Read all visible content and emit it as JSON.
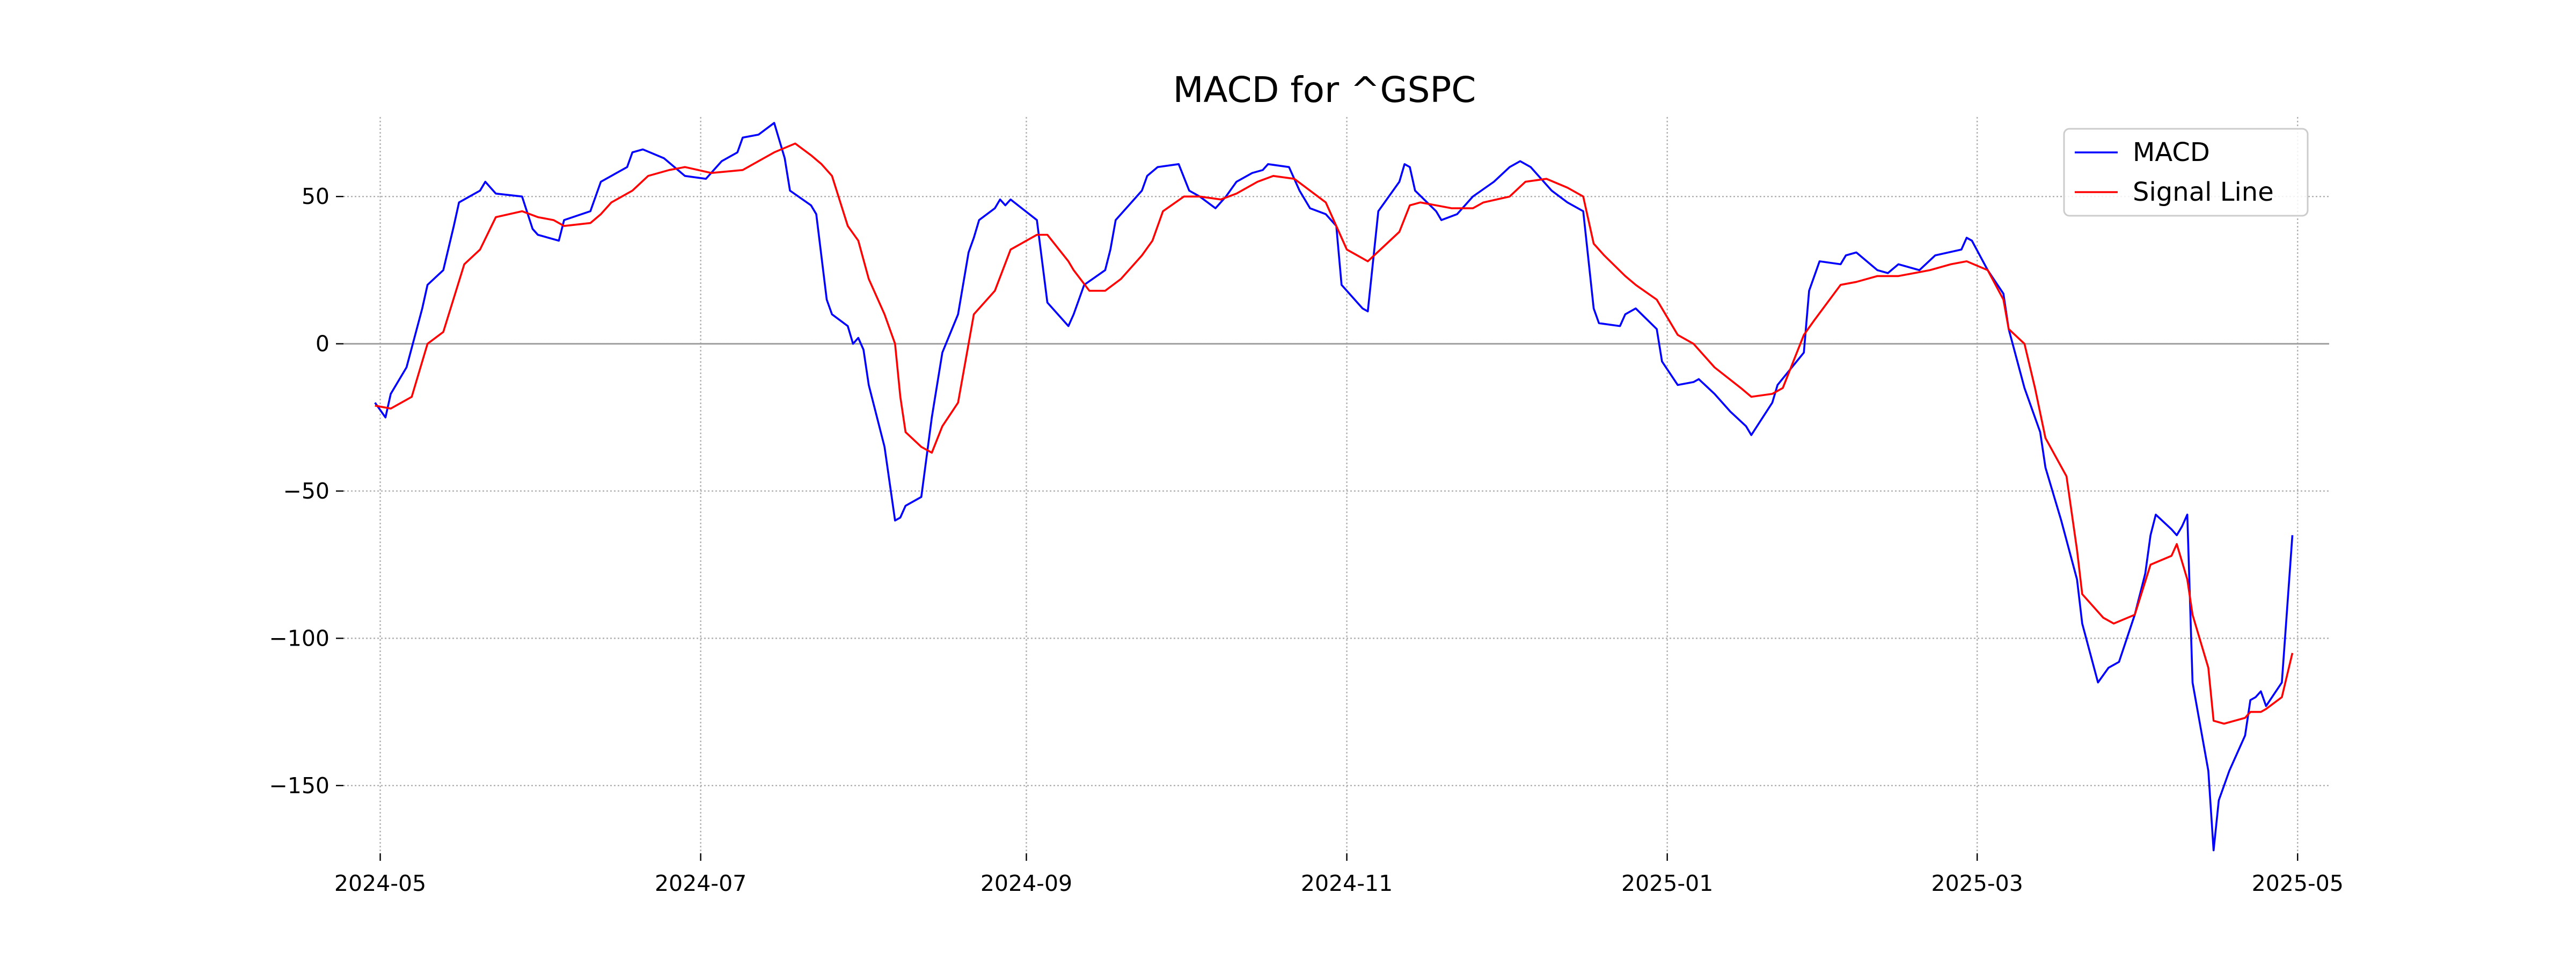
{
  "chart_data": {
    "type": "line",
    "title": "MACD for ^GSPC",
    "xlabel": "",
    "ylabel": "",
    "x_ticks": [
      "2024-05",
      "2024-07",
      "2024-09",
      "2024-11",
      "2025-01",
      "2025-03",
      "2025-05"
    ],
    "y_ticks": [
      50,
      0,
      -50,
      -100,
      -150
    ],
    "xlim": [
      "2024-04-24",
      "2025-05-07"
    ],
    "ylim": [
      -173,
      77
    ],
    "grid": true,
    "zero_line": true,
    "legend_position": "top-right",
    "series": [
      {
        "name": "MACD",
        "color": "#0000ff",
        "points": [
          [
            "2024-04-30",
            -20
          ],
          [
            "2024-05-02",
            -25
          ],
          [
            "2024-05-03",
            -17
          ],
          [
            "2024-05-06",
            -8
          ],
          [
            "2024-05-09",
            12
          ],
          [
            "2024-05-10",
            20
          ],
          [
            "2024-05-13",
            25
          ],
          [
            "2024-05-15",
            40
          ],
          [
            "2024-05-16",
            48
          ],
          [
            "2024-05-20",
            52
          ],
          [
            "2024-05-21",
            55
          ],
          [
            "2024-05-23",
            51
          ],
          [
            "2024-05-28",
            50
          ],
          [
            "2024-05-30",
            39
          ],
          [
            "2024-05-31",
            37
          ],
          [
            "2024-06-04",
            35
          ],
          [
            "2024-06-05",
            42
          ],
          [
            "2024-06-10",
            45
          ],
          [
            "2024-06-12",
            55
          ],
          [
            "2024-06-17",
            60
          ],
          [
            "2024-06-18",
            65
          ],
          [
            "2024-06-20",
            66
          ],
          [
            "2024-06-24",
            63
          ],
          [
            "2024-06-28",
            57
          ],
          [
            "2024-07-02",
            56
          ],
          [
            "2024-07-05",
            62
          ],
          [
            "2024-07-08",
            65
          ],
          [
            "2024-07-09",
            70
          ],
          [
            "2024-07-12",
            71
          ],
          [
            "2024-07-15",
            75
          ],
          [
            "2024-07-17",
            63
          ],
          [
            "2024-07-18",
            52
          ],
          [
            "2024-07-22",
            47
          ],
          [
            "2024-07-23",
            44
          ],
          [
            "2024-07-25",
            15
          ],
          [
            "2024-07-26",
            10
          ],
          [
            "2024-07-29",
            6
          ],
          [
            "2024-07-30",
            0
          ],
          [
            "2024-07-31",
            2
          ],
          [
            "2024-08-01",
            -2
          ],
          [
            "2024-08-02",
            -14
          ],
          [
            "2024-08-05",
            -35
          ],
          [
            "2024-08-07",
            -60
          ],
          [
            "2024-08-08",
            -59
          ],
          [
            "2024-08-09",
            -55
          ],
          [
            "2024-08-12",
            -52
          ],
          [
            "2024-08-14",
            -25
          ],
          [
            "2024-08-16",
            -3
          ],
          [
            "2024-08-19",
            10
          ],
          [
            "2024-08-21",
            31
          ],
          [
            "2024-08-22",
            36
          ],
          [
            "2024-08-23",
            42
          ],
          [
            "2024-08-26",
            46
          ],
          [
            "2024-08-27",
            49
          ],
          [
            "2024-08-28",
            47
          ],
          [
            "2024-08-29",
            49
          ],
          [
            "2024-09-03",
            42
          ],
          [
            "2024-09-05",
            14
          ],
          [
            "2024-09-09",
            6
          ],
          [
            "2024-09-10",
            10
          ],
          [
            "2024-09-12",
            20
          ],
          [
            "2024-09-16",
            25
          ],
          [
            "2024-09-17",
            32
          ],
          [
            "2024-09-18",
            42
          ],
          [
            "2024-09-20",
            46
          ],
          [
            "2024-09-23",
            52
          ],
          [
            "2024-09-24",
            57
          ],
          [
            "2024-09-26",
            60
          ],
          [
            "2024-09-30",
            61
          ],
          [
            "2024-10-02",
            52
          ],
          [
            "2024-10-04",
            50
          ],
          [
            "2024-10-07",
            46
          ],
          [
            "2024-10-09",
            50
          ],
          [
            "2024-10-11",
            55
          ],
          [
            "2024-10-14",
            58
          ],
          [
            "2024-10-16",
            59
          ],
          [
            "2024-10-17",
            61
          ],
          [
            "2024-10-21",
            60
          ],
          [
            "2024-10-23",
            52
          ],
          [
            "2024-10-25",
            46
          ],
          [
            "2024-10-28",
            44
          ],
          [
            "2024-10-30",
            40
          ],
          [
            "2024-10-31",
            20
          ],
          [
            "2024-11-04",
            12
          ],
          [
            "2024-11-05",
            11
          ],
          [
            "2024-11-07",
            45
          ],
          [
            "2024-11-11",
            55
          ],
          [
            "2024-11-12",
            61
          ],
          [
            "2024-11-13",
            60
          ],
          [
            "2024-11-14",
            52
          ],
          [
            "2024-11-18",
            45
          ],
          [
            "2024-11-19",
            42
          ],
          [
            "2024-11-22",
            44
          ],
          [
            "2024-11-25",
            50
          ],
          [
            "2024-11-29",
            55
          ],
          [
            "2024-12-02",
            60
          ],
          [
            "2024-12-04",
            62
          ],
          [
            "2024-12-06",
            60
          ],
          [
            "2024-12-10",
            52
          ],
          [
            "2024-12-13",
            48
          ],
          [
            "2024-12-16",
            45
          ],
          [
            "2024-12-18",
            12
          ],
          [
            "2024-12-19",
            7
          ],
          [
            "2024-12-23",
            6
          ],
          [
            "2024-12-24",
            10
          ],
          [
            "2024-12-26",
            12
          ],
          [
            "2024-12-30",
            5
          ],
          [
            "2024-12-31",
            -6
          ],
          [
            "2025-01-03",
            -14
          ],
          [
            "2025-01-06",
            -13
          ],
          [
            "2025-01-07",
            -12
          ],
          [
            "2025-01-10",
            -17
          ],
          [
            "2025-01-13",
            -23
          ],
          [
            "2025-01-16",
            -28
          ],
          [
            "2025-01-17",
            -31
          ],
          [
            "2025-01-21",
            -20
          ],
          [
            "2025-01-22",
            -14
          ],
          [
            "2025-01-27",
            -3
          ],
          [
            "2025-01-28",
            18
          ],
          [
            "2025-01-30",
            28
          ],
          [
            "2025-02-03",
            27
          ],
          [
            "2025-02-04",
            30
          ],
          [
            "2025-02-06",
            31
          ],
          [
            "2025-02-10",
            25
          ],
          [
            "2025-02-12",
            24
          ],
          [
            "2025-02-14",
            27
          ],
          [
            "2025-02-18",
            25
          ],
          [
            "2025-02-21",
            30
          ],
          [
            "2025-02-26",
            32
          ],
          [
            "2025-02-27",
            36
          ],
          [
            "2025-02-28",
            35
          ],
          [
            "2025-03-03",
            25
          ],
          [
            "2025-03-06",
            17
          ],
          [
            "2025-03-07",
            5
          ],
          [
            "2025-03-10",
            -15
          ],
          [
            "2025-03-13",
            -30
          ],
          [
            "2025-03-14",
            -42
          ],
          [
            "2025-03-17",
            -60
          ],
          [
            "2025-03-20",
            -80
          ],
          [
            "2025-03-21",
            -95
          ],
          [
            "2025-03-24",
            -115
          ],
          [
            "2025-03-26",
            -110
          ],
          [
            "2025-03-28",
            -108
          ],
          [
            "2025-03-31",
            -92
          ],
          [
            "2025-04-02",
            -78
          ],
          [
            "2025-04-03",
            -65
          ],
          [
            "2025-04-04",
            -58
          ],
          [
            "2025-04-07",
            -63
          ],
          [
            "2025-04-08",
            -65
          ],
          [
            "2025-04-09",
            -62
          ],
          [
            "2025-04-10",
            -58
          ],
          [
            "2025-04-11",
            -115
          ],
          [
            "2025-04-14",
            -145
          ],
          [
            "2025-04-15",
            -172
          ],
          [
            "2025-04-16",
            -155
          ],
          [
            "2025-04-17",
            -150
          ],
          [
            "2025-04-18",
            -145
          ],
          [
            "2025-04-21",
            -133
          ],
          [
            "2025-04-22",
            -121
          ],
          [
            "2025-04-23",
            -120
          ],
          [
            "2025-04-24",
            -118
          ],
          [
            "2025-04-25",
            -123
          ],
          [
            "2025-04-28",
            -115
          ],
          [
            "2025-04-30",
            -65
          ]
        ]
      },
      {
        "name": "Signal Line",
        "color": "#ff0000",
        "points": [
          [
            "2024-04-30",
            -21
          ],
          [
            "2024-05-03",
            -22
          ],
          [
            "2024-05-07",
            -18
          ],
          [
            "2024-05-10",
            0
          ],
          [
            "2024-05-13",
            4
          ],
          [
            "2024-05-17",
            27
          ],
          [
            "2024-05-20",
            32
          ],
          [
            "2024-05-23",
            43
          ],
          [
            "2024-05-28",
            45
          ],
          [
            "2024-05-31",
            43
          ],
          [
            "2024-06-03",
            42
          ],
          [
            "2024-06-05",
            40
          ],
          [
            "2024-06-10",
            41
          ],
          [
            "2024-06-12",
            44
          ],
          [
            "2024-06-14",
            48
          ],
          [
            "2024-06-18",
            52
          ],
          [
            "2024-06-21",
            57
          ],
          [
            "2024-06-25",
            59
          ],
          [
            "2024-06-28",
            60
          ],
          [
            "2024-07-03",
            58
          ],
          [
            "2024-07-09",
            59
          ],
          [
            "2024-07-11",
            61
          ],
          [
            "2024-07-15",
            65
          ],
          [
            "2024-07-19",
            68
          ],
          [
            "2024-07-22",
            64
          ],
          [
            "2024-07-24",
            61
          ],
          [
            "2024-07-26",
            57
          ],
          [
            "2024-07-29",
            40
          ],
          [
            "2024-07-31",
            35
          ],
          [
            "2024-08-02",
            22
          ],
          [
            "2024-08-05",
            10
          ],
          [
            "2024-08-07",
            0
          ],
          [
            "2024-08-08",
            -18
          ],
          [
            "2024-08-09",
            -30
          ],
          [
            "2024-08-12",
            -35
          ],
          [
            "2024-08-14",
            -37
          ],
          [
            "2024-08-16",
            -28
          ],
          [
            "2024-08-19",
            -20
          ],
          [
            "2024-08-22",
            10
          ],
          [
            "2024-08-26",
            18
          ],
          [
            "2024-08-29",
            32
          ],
          [
            "2024-09-03",
            37
          ],
          [
            "2024-09-05",
            37
          ],
          [
            "2024-09-09",
            28
          ],
          [
            "2024-09-10",
            25
          ],
          [
            "2024-09-13",
            18
          ],
          [
            "2024-09-16",
            18
          ],
          [
            "2024-09-19",
            22
          ],
          [
            "2024-09-23",
            30
          ],
          [
            "2024-09-25",
            35
          ],
          [
            "2024-09-27",
            45
          ],
          [
            "2024-10-01",
            50
          ],
          [
            "2024-10-04",
            50
          ],
          [
            "2024-10-08",
            49
          ],
          [
            "2024-10-11",
            51
          ],
          [
            "2024-10-15",
            55
          ],
          [
            "2024-10-18",
            57
          ],
          [
            "2024-10-22",
            56
          ],
          [
            "2024-10-25",
            52
          ],
          [
            "2024-10-28",
            48
          ],
          [
            "2024-10-30",
            40
          ],
          [
            "2024-11-01",
            32
          ],
          [
            "2024-11-05",
            28
          ],
          [
            "2024-11-08",
            33
          ],
          [
            "2024-11-11",
            38
          ],
          [
            "2024-11-13",
            47
          ],
          [
            "2024-11-15",
            48
          ],
          [
            "2024-11-18",
            47
          ],
          [
            "2024-11-21",
            46
          ],
          [
            "2024-11-25",
            46
          ],
          [
            "2024-11-27",
            48
          ],
          [
            "2024-12-02",
            50
          ],
          [
            "2024-12-05",
            55
          ],
          [
            "2024-12-09",
            56
          ],
          [
            "2024-12-13",
            53
          ],
          [
            "2024-12-16",
            50
          ],
          [
            "2024-12-18",
            34
          ],
          [
            "2024-12-20",
            30
          ],
          [
            "2024-12-24",
            23
          ],
          [
            "2024-12-26",
            20
          ],
          [
            "2024-12-30",
            15
          ],
          [
            "2025-01-03",
            3
          ],
          [
            "2025-01-06",
            0
          ],
          [
            "2025-01-10",
            -8
          ],
          [
            "2025-01-15",
            -15
          ],
          [
            "2025-01-17",
            -18
          ],
          [
            "2025-01-21",
            -17
          ],
          [
            "2025-01-23",
            -15
          ],
          [
            "2025-01-27",
            3
          ],
          [
            "2025-01-29",
            8
          ],
          [
            "2025-02-03",
            20
          ],
          [
            "2025-02-06",
            21
          ],
          [
            "2025-02-10",
            23
          ],
          [
            "2025-02-14",
            23
          ],
          [
            "2025-02-20",
            25
          ],
          [
            "2025-02-24",
            27
          ],
          [
            "2025-02-27",
            28
          ],
          [
            "2025-03-03",
            25
          ],
          [
            "2025-03-06",
            15
          ],
          [
            "2025-03-07",
            5
          ],
          [
            "2025-03-10",
            0
          ],
          [
            "2025-03-12",
            -15
          ],
          [
            "2025-03-14",
            -32
          ],
          [
            "2025-03-18",
            -45
          ],
          [
            "2025-03-20",
            -70
          ],
          [
            "2025-03-21",
            -85
          ],
          [
            "2025-03-25",
            -93
          ],
          [
            "2025-03-27",
            -95
          ],
          [
            "2025-03-31",
            -92
          ],
          [
            "2025-04-03",
            -75
          ],
          [
            "2025-04-07",
            -72
          ],
          [
            "2025-04-08",
            -68
          ],
          [
            "2025-04-10",
            -80
          ],
          [
            "2025-04-11",
            -92
          ],
          [
            "2025-04-14",
            -110
          ],
          [
            "2025-04-15",
            -128
          ],
          [
            "2025-04-17",
            -129
          ],
          [
            "2025-04-21",
            -127
          ],
          [
            "2025-04-22",
            -125
          ],
          [
            "2025-04-24",
            -125
          ],
          [
            "2025-04-25",
            -124
          ],
          [
            "2025-04-28",
            -120
          ],
          [
            "2025-04-30",
            -105
          ]
        ]
      }
    ]
  }
}
